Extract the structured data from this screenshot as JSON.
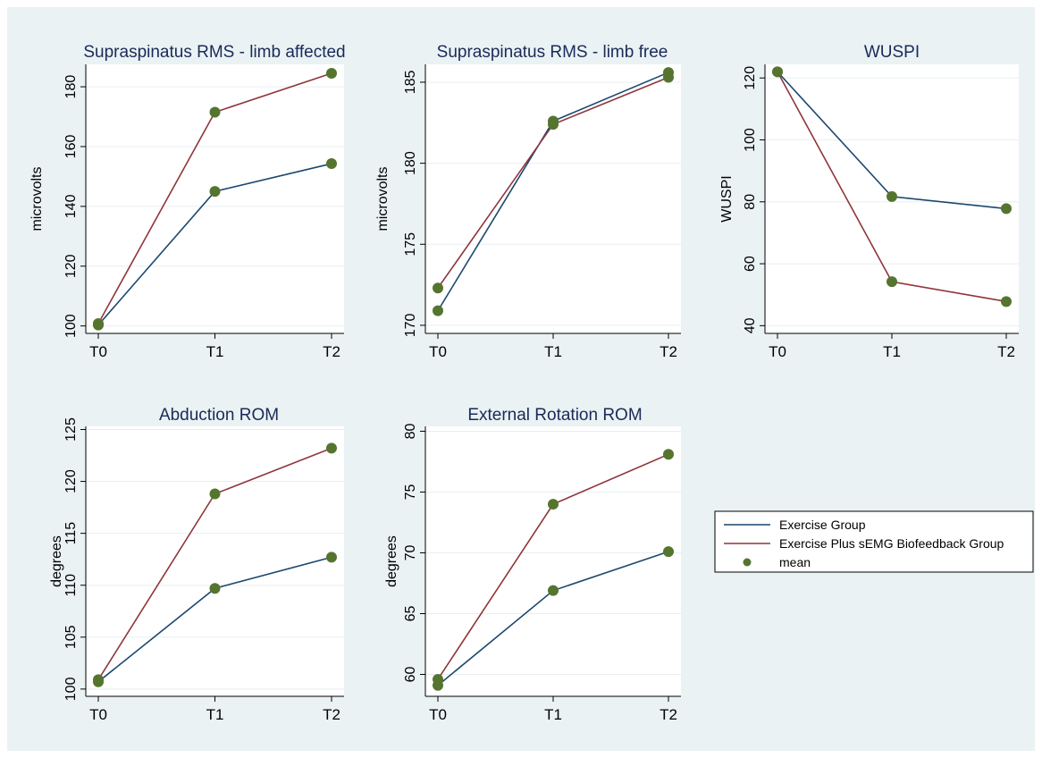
{
  "colors": {
    "background": "#eaf2f3",
    "plot_area": "#ffffff",
    "grid": "#e8eff0",
    "axis": "#000000",
    "title": "#1a2a5a",
    "exercise_group": "#1a476f",
    "biofeedback_group": "#90353b",
    "mean_marker": "#55752f"
  },
  "legend": {
    "placement": "right-middle",
    "items": [
      {
        "label": "Exercise Group",
        "kind": "line",
        "color": "#1a476f"
      },
      {
        "label": "Exercise Plus sEMG Biofeedback Group",
        "kind": "line",
        "color": "#90353b"
      },
      {
        "label": "mean",
        "kind": "marker",
        "color": "#55752f"
      }
    ]
  },
  "chart_data": [
    {
      "type": "line",
      "title": "Supraspinatus RMS - limb affected",
      "xlabel": "",
      "ylabel": "microvolts",
      "categories": [
        "T0",
        "T1",
        "T2"
      ],
      "yticks": [
        100,
        120,
        140,
        160,
        180
      ],
      "ylim": [
        97.5,
        187.5
      ],
      "grid": true,
      "series": [
        {
          "name": "Exercise Group",
          "values": [
            100.3,
            145,
            154.3
          ]
        },
        {
          "name": "Exercise Plus sEMG Biofeedback Group",
          "values": [
            100.8,
            171.5,
            184.5
          ]
        }
      ]
    },
    {
      "type": "line",
      "title": "Supraspinatus RMS - limb free",
      "xlabel": "",
      "ylabel": "microvolts",
      "categories": [
        "T0",
        "T1",
        "T2"
      ],
      "yticks": [
        170,
        175,
        180,
        185
      ],
      "ylim": [
        169.5,
        186.1
      ],
      "grid": true,
      "series": [
        {
          "name": "Exercise Group",
          "values": [
            170.9,
            182.6,
            185.6
          ]
        },
        {
          "name": "Exercise Plus sEMG Biofeedback Group",
          "values": [
            172.3,
            182.4,
            185.3
          ]
        }
      ]
    },
    {
      "type": "line",
      "title": "WUSPI",
      "xlabel": "",
      "ylabel": "WUSPI",
      "categories": [
        "T0",
        "T1",
        "T2"
      ],
      "yticks": [
        40,
        60,
        80,
        100,
        120
      ],
      "ylim": [
        37.5,
        124.4
      ],
      "grid": true,
      "series": [
        {
          "name": "Exercise Group",
          "values": [
            122,
            81.7,
            77.8
          ]
        },
        {
          "name": "Exercise Plus sEMG Biofeedback Group",
          "values": [
            122,
            54.2,
            47.8
          ]
        }
      ]
    },
    {
      "type": "line",
      "title": "Abduction ROM",
      "xlabel": "",
      "ylabel": "degrees",
      "categories": [
        "T0",
        "T1",
        "T2"
      ],
      "yticks": [
        100,
        105,
        110,
        115,
        120,
        125
      ],
      "ylim": [
        99.3,
        125.3
      ],
      "grid": true,
      "series": [
        {
          "name": "Exercise Group",
          "values": [
            100.7,
            109.7,
            112.7
          ]
        },
        {
          "name": "Exercise Plus sEMG Biofeedback Group",
          "values": [
            100.9,
            118.8,
            123.2
          ]
        }
      ]
    },
    {
      "type": "line",
      "title": "External Rotation ROM",
      "xlabel": "",
      "ylabel": "degrees",
      "categories": [
        "T0",
        "T1",
        "T2"
      ],
      "yticks": [
        60,
        65,
        70,
        75,
        80
      ],
      "ylim": [
        58.2,
        80.4
      ],
      "grid": true,
      "series": [
        {
          "name": "Exercise Group",
          "values": [
            59.1,
            66.9,
            70.1
          ]
        },
        {
          "name": "Exercise Plus sEMG Biofeedback Group",
          "values": [
            59.6,
            74.0,
            78.1
          ]
        }
      ]
    }
  ]
}
